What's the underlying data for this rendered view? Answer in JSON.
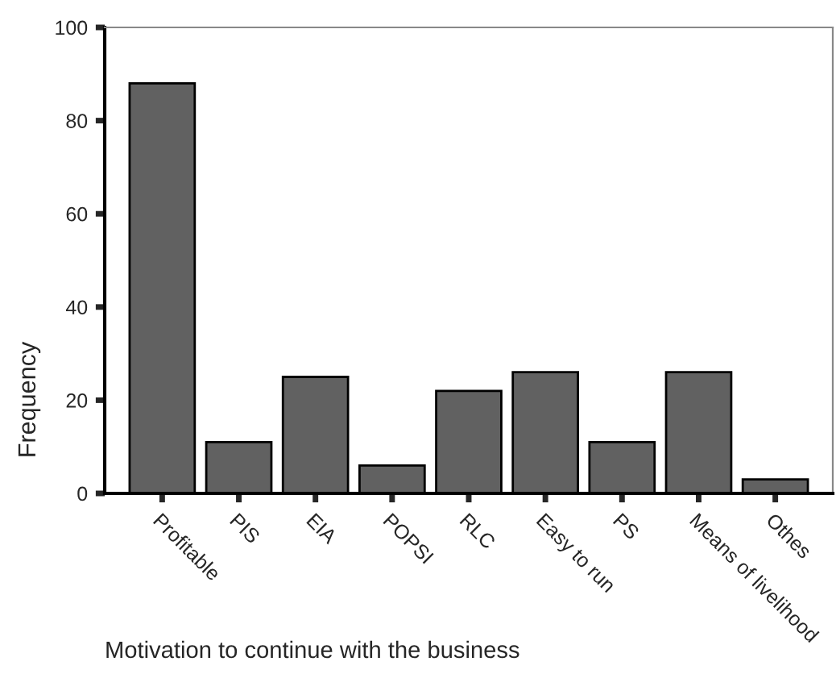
{
  "chart_data": {
    "type": "bar",
    "xlabel": "Motivation to continue with the business",
    "ylabel": "Frequency",
    "categories": [
      "Profitable",
      "PIS",
      "EIA",
      "POPSI",
      "RLC",
      "Easy to run",
      "PS",
      "Means of livelihood",
      "Othes"
    ],
    "values": [
      88,
      11,
      25,
      6,
      22,
      26,
      11,
      26,
      3
    ],
    "color": "#616161",
    "ylim": [
      0,
      100
    ],
    "yticks": [
      0,
      20,
      40,
      60,
      80,
      100
    ],
    "grid": false
  }
}
